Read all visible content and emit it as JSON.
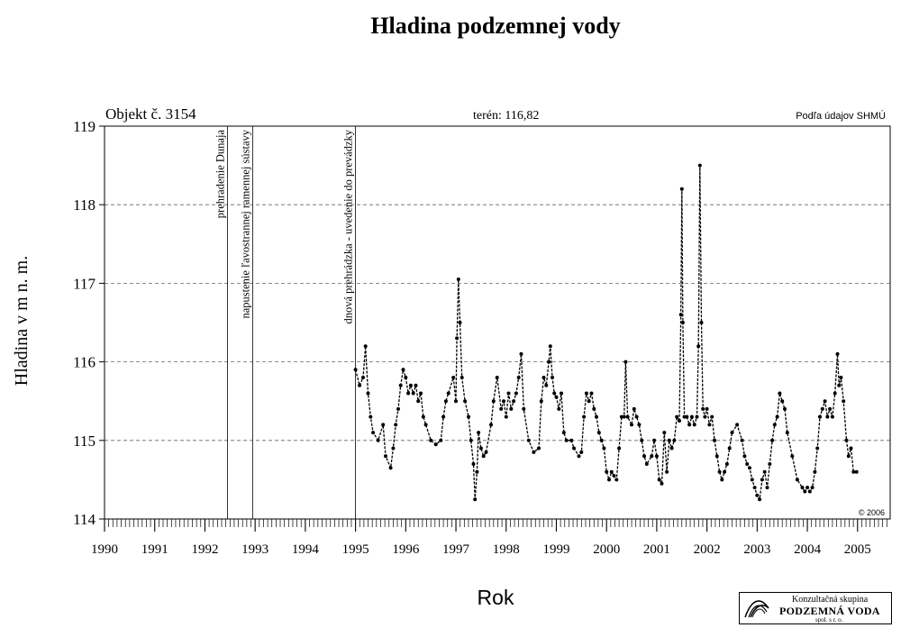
{
  "chart_data": {
    "type": "line",
    "title": "Hladina podzemnej vody",
    "object_label": "Objekt č. 3154",
    "terrain_label": "terén: 116,82",
    "source_label": "Podľa údajov SHMÚ",
    "copyright_label": "© 2006",
    "xlabel": "Rok",
    "ylabel": "Hladina v m n. m.",
    "ylim": [
      114,
      119
    ],
    "xlim": [
      1990.0,
      2005.65
    ],
    "y_ticks": [
      "114",
      "115",
      "116",
      "117",
      "118",
      "119"
    ],
    "x_ticks": [
      "1990",
      "1991",
      "1992",
      "1993",
      "1994",
      "1995",
      "1996",
      "1997",
      "1998",
      "1999",
      "2000",
      "2001",
      "2002",
      "2003",
      "2004",
      "2005"
    ],
    "grid": "horizontal dashed",
    "events": [
      {
        "x": 1992.45,
        "label": "prehradenie Dunaja"
      },
      {
        "x": 1992.95,
        "label": "napustenie ľavostrannej ramennej sústavy"
      },
      {
        "x": 1995.0,
        "label": "dnová prehrádzka - uvedenie do prevádzky"
      }
    ],
    "series": [
      {
        "values": [
          [
            1995.0,
            115.9
          ],
          [
            1995.08,
            115.7
          ],
          [
            1995.15,
            115.8
          ],
          [
            1995.2,
            116.2
          ],
          [
            1995.25,
            115.6
          ],
          [
            1995.3,
            115.3
          ],
          [
            1995.35,
            115.1
          ],
          [
            1995.45,
            115.0
          ],
          [
            1995.55,
            115.2
          ],
          [
            1995.6,
            114.8
          ],
          [
            1995.7,
            114.65
          ],
          [
            1995.75,
            114.9
          ],
          [
            1995.8,
            115.2
          ],
          [
            1995.85,
            115.4
          ],
          [
            1995.9,
            115.7
          ],
          [
            1995.95,
            115.9
          ],
          [
            1996.0,
            115.8
          ],
          [
            1996.05,
            115.6
          ],
          [
            1996.1,
            115.7
          ],
          [
            1996.15,
            115.6
          ],
          [
            1996.2,
            115.7
          ],
          [
            1996.25,
            115.5
          ],
          [
            1996.3,
            115.6
          ],
          [
            1996.35,
            115.3
          ],
          [
            1996.4,
            115.2
          ],
          [
            1996.5,
            115.0
          ],
          [
            1996.6,
            114.95
          ],
          [
            1996.7,
            115.0
          ],
          [
            1996.75,
            115.3
          ],
          [
            1996.8,
            115.5
          ],
          [
            1996.85,
            115.6
          ],
          [
            1996.95,
            115.8
          ],
          [
            1997.0,
            115.5
          ],
          [
            1997.02,
            116.3
          ],
          [
            1997.05,
            117.05
          ],
          [
            1997.08,
            116.5
          ],
          [
            1997.12,
            115.8
          ],
          [
            1997.18,
            115.5
          ],
          [
            1997.25,
            115.3
          ],
          [
            1997.3,
            115.0
          ],
          [
            1997.35,
            114.7
          ],
          [
            1997.38,
            114.25
          ],
          [
            1997.42,
            114.6
          ],
          [
            1997.45,
            115.1
          ],
          [
            1997.5,
            114.9
          ],
          [
            1997.55,
            114.8
          ],
          [
            1997.6,
            114.85
          ],
          [
            1997.7,
            115.2
          ],
          [
            1997.75,
            115.5
          ],
          [
            1997.82,
            115.8
          ],
          [
            1997.9,
            115.4
          ],
          [
            1997.95,
            115.5
          ],
          [
            1998.0,
            115.3
          ],
          [
            1998.05,
            115.6
          ],
          [
            1998.1,
            115.4
          ],
          [
            1998.15,
            115.5
          ],
          [
            1998.2,
            115.6
          ],
          [
            1998.25,
            115.8
          ],
          [
            1998.3,
            116.1
          ],
          [
            1998.35,
            115.4
          ],
          [
            1998.45,
            115.0
          ],
          [
            1998.55,
            114.85
          ],
          [
            1998.65,
            114.9
          ],
          [
            1998.7,
            115.5
          ],
          [
            1998.75,
            115.8
          ],
          [
            1998.8,
            115.7
          ],
          [
            1998.85,
            116.0
          ],
          [
            1998.88,
            116.2
          ],
          [
            1998.92,
            115.8
          ],
          [
            1998.96,
            115.6
          ],
          [
            1999.0,
            115.55
          ],
          [
            1999.05,
            115.4
          ],
          [
            1999.1,
            115.6
          ],
          [
            1999.15,
            115.1
          ],
          [
            1999.2,
            115.0
          ],
          [
            1999.3,
            115.0
          ],
          [
            1999.35,
            114.9
          ],
          [
            1999.45,
            114.8
          ],
          [
            1999.5,
            114.85
          ],
          [
            1999.55,
            115.3
          ],
          [
            1999.6,
            115.6
          ],
          [
            1999.65,
            115.5
          ],
          [
            1999.7,
            115.6
          ],
          [
            1999.75,
            115.4
          ],
          [
            1999.8,
            115.3
          ],
          [
            1999.85,
            115.1
          ],
          [
            1999.9,
            115.0
          ],
          [
            1999.95,
            114.9
          ],
          [
            2000.0,
            114.6
          ],
          [
            2000.05,
            114.5
          ],
          [
            2000.1,
            114.6
          ],
          [
            2000.15,
            114.55
          ],
          [
            2000.2,
            114.5
          ],
          [
            2000.25,
            114.9
          ],
          [
            2000.3,
            115.3
          ],
          [
            2000.35,
            115.3
          ],
          [
            2000.38,
            116.0
          ],
          [
            2000.42,
            115.3
          ],
          [
            2000.5,
            115.2
          ],
          [
            2000.55,
            115.4
          ],
          [
            2000.6,
            115.3
          ],
          [
            2000.65,
            115.2
          ],
          [
            2000.7,
            115.0
          ],
          [
            2000.75,
            114.8
          ],
          [
            2000.8,
            114.7
          ],
          [
            2000.9,
            114.8
          ],
          [
            2000.95,
            115.0
          ],
          [
            2001.0,
            114.8
          ],
          [
            2001.05,
            114.5
          ],
          [
            2001.1,
            114.45
          ],
          [
            2001.15,
            115.1
          ],
          [
            2001.2,
            114.6
          ],
          [
            2001.25,
            115.0
          ],
          [
            2001.3,
            114.9
          ],
          [
            2001.35,
            115.0
          ],
          [
            2001.4,
            115.3
          ],
          [
            2001.45,
            115.25
          ],
          [
            2001.48,
            116.6
          ],
          [
            2001.5,
            118.2
          ],
          [
            2001.52,
            116.5
          ],
          [
            2001.55,
            115.3
          ],
          [
            2001.6,
            115.3
          ],
          [
            2001.65,
            115.2
          ],
          [
            2001.7,
            115.3
          ],
          [
            2001.75,
            115.2
          ],
          [
            2001.8,
            115.3
          ],
          [
            2001.83,
            116.2
          ],
          [
            2001.86,
            118.5
          ],
          [
            2001.89,
            116.5
          ],
          [
            2001.92,
            115.4
          ],
          [
            2001.96,
            115.3
          ],
          [
            2002.0,
            115.4
          ],
          [
            2002.05,
            115.2
          ],
          [
            2002.1,
            115.3
          ],
          [
            2002.15,
            115.0
          ],
          [
            2002.2,
            114.8
          ],
          [
            2002.25,
            114.6
          ],
          [
            2002.3,
            114.5
          ],
          [
            2002.35,
            114.6
          ],
          [
            2002.4,
            114.7
          ],
          [
            2002.45,
            114.9
          ],
          [
            2002.5,
            115.1
          ],
          [
            2002.6,
            115.2
          ],
          [
            2002.7,
            115.0
          ],
          [
            2002.75,
            114.8
          ],
          [
            2002.8,
            114.7
          ],
          [
            2002.85,
            114.65
          ],
          [
            2002.9,
            114.5
          ],
          [
            2002.95,
            114.4
          ],
          [
            2003.0,
            114.3
          ],
          [
            2003.05,
            114.25
          ],
          [
            2003.1,
            114.5
          ],
          [
            2003.15,
            114.6
          ],
          [
            2003.2,
            114.4
          ],
          [
            2003.25,
            114.7
          ],
          [
            2003.3,
            115.0
          ],
          [
            2003.35,
            115.2
          ],
          [
            2003.4,
            115.3
          ],
          [
            2003.45,
            115.6
          ],
          [
            2003.5,
            115.5
          ],
          [
            2003.55,
            115.4
          ],
          [
            2003.6,
            115.1
          ],
          [
            2003.7,
            114.8
          ],
          [
            2003.8,
            114.5
          ],
          [
            2003.9,
            114.4
          ],
          [
            2003.95,
            114.35
          ],
          [
            2004.0,
            114.4
          ],
          [
            2004.05,
            114.35
          ],
          [
            2004.1,
            114.4
          ],
          [
            2004.15,
            114.6
          ],
          [
            2004.2,
            114.9
          ],
          [
            2004.25,
            115.3
          ],
          [
            2004.3,
            115.4
          ],
          [
            2004.35,
            115.5
          ],
          [
            2004.4,
            115.3
          ],
          [
            2004.45,
            115.4
          ],
          [
            2004.5,
            115.3
          ],
          [
            2004.55,
            115.6
          ],
          [
            2004.6,
            116.1
          ],
          [
            2004.63,
            115.7
          ],
          [
            2004.67,
            115.8
          ],
          [
            2004.72,
            115.5
          ],
          [
            2004.78,
            115.0
          ],
          [
            2004.82,
            114.8
          ],
          [
            2004.87,
            114.9
          ],
          [
            2004.92,
            114.6
          ],
          [
            2004.98,
            114.6
          ]
        ]
      }
    ]
  },
  "logo": {
    "line1": "Konzultačná skupina",
    "line2": "PODZEMNÁ VODA",
    "line3": "spol. s r. o."
  }
}
